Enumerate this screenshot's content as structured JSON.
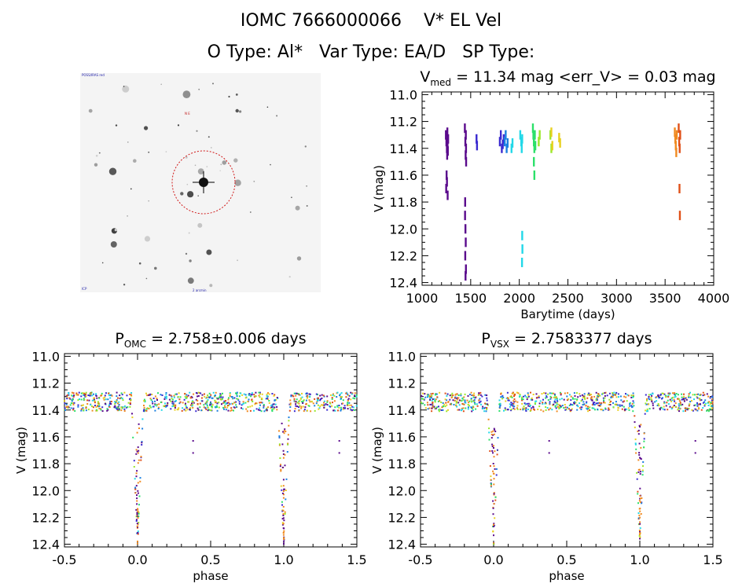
{
  "header": {
    "title": "IOMC 7666000066    V* EL Vel",
    "subtitle": "O Type: Al*   Var Type: EA/D   SP Type:"
  },
  "image_panel": {
    "corner_labels": [
      "POSS/IRAS red",
      "N   E",
      "ICP",
      "2 arcmin"
    ]
  },
  "chart_data": [
    {
      "type": "scatter",
      "title": "V_med = 11.34 mag <err_V> = 0.03 mag",
      "title_parts": {
        "v": "V",
        "sub": "med",
        "rest": " = 11.34 mag <err_V> = 0.03 mag"
      },
      "xlabel": "Barytime (days)",
      "ylabel": "V (mag)",
      "xlim": [
        1000,
        4000
      ],
      "ylim": [
        12.42,
        10.98
      ],
      "x_ticks": [
        1000,
        1500,
        2000,
        2500,
        3000,
        3500,
        4000
      ],
      "y_ticks": [
        "11.0",
        "11.2",
        "11.4",
        "11.6",
        "11.8",
        "12.0",
        "12.2",
        "12.4"
      ],
      "series": [
        {
          "color": "#5a0a8c",
          "x": [
            1245,
            1250,
            1255,
            1258,
            1260,
            1262,
            1265,
            1268,
            1252,
            1248,
            1256,
            1263,
            1440,
            1445,
            1448,
            1450,
            1452,
            1442,
            1446,
            1449,
            1444,
            1451,
            1447,
            1443,
            1453
          ],
          "y": [
            11.3,
            11.35,
            11.4,
            11.45,
            11.28,
            11.38,
            11.42,
            11.33,
            11.6,
            11.7,
            11.65,
            11.75,
            11.25,
            11.35,
            11.45,
            11.3,
            11.4,
            11.9,
            12.0,
            12.1,
            12.2,
            12.3,
            12.35,
            11.8,
            11.5
          ]
        },
        {
          "color": "#3a2ad0",
          "x": [
            1560,
            1565,
            1800,
            1810,
            1820,
            1830,
            1840
          ],
          "y": [
            11.33,
            11.38,
            11.35,
            11.3,
            11.4,
            11.37,
            11.33
          ]
        },
        {
          "color": "#1a7fe0",
          "x": [
            1850,
            1860,
            1870,
            1880
          ],
          "y": [
            11.35,
            11.3,
            11.4,
            11.36
          ]
        },
        {
          "color": "#22d8e8",
          "x": [
            1920,
            1930,
            2010,
            2020,
            2025,
            2030,
            2030,
            2032,
            2028
          ],
          "y": [
            11.4,
            11.36,
            11.3,
            11.35,
            11.4,
            11.33,
            12.05,
            12.15,
            12.25
          ]
        },
        {
          "color": "#2ce06a",
          "x": [
            2140,
            2145,
            2150,
            2155,
            2160,
            2165,
            2150,
            2155
          ],
          "y": [
            11.25,
            11.3,
            11.35,
            11.4,
            11.3,
            11.38,
            11.5,
            11.6
          ]
        },
        {
          "color": "#9ae82a",
          "x": [
            2200,
            2210,
            2320,
            2330
          ],
          "y": [
            11.35,
            11.3,
            11.3,
            11.4
          ]
        },
        {
          "color": "#e8d020",
          "x": [
            2330,
            2340,
            2410,
            2420
          ],
          "y": [
            11.28,
            11.38,
            11.32,
            11.36
          ]
        },
        {
          "color": "#f08a20",
          "x": [
            3600,
            3605,
            3610,
            3615,
            3620
          ],
          "y": [
            11.28,
            11.33,
            11.38,
            11.43,
            11.3
          ]
        },
        {
          "color": "#e05018",
          "x": [
            3640,
            3645,
            3650,
            3655,
            3648,
            3652
          ],
          "y": [
            11.25,
            11.35,
            11.4,
            11.3,
            11.7,
            11.9
          ]
        }
      ]
    },
    {
      "type": "scatter",
      "title": "P_OMC = 2.758±0.006 days",
      "title_parts": {
        "v": "P",
        "sub": "OMC",
        "rest": " = 2.758±0.006 days"
      },
      "xlabel": "phase",
      "ylabel": "V (mag)",
      "xlim": [
        -0.5,
        1.5
      ],
      "ylim": [
        12.42,
        10.98
      ],
      "x_ticks": [
        "-0.5",
        "0.0",
        "0.5",
        "1.0",
        "1.5"
      ],
      "y_ticks": [
        "11.0",
        "11.2",
        "11.4",
        "11.6",
        "11.8",
        "12.0",
        "12.2",
        "12.4"
      ],
      "eclipses": [
        {
          "phase": 0.0,
          "depth": 12.4
        },
        {
          "phase": 1.0,
          "depth": 12.4
        }
      ],
      "outliers": [
        [
          0.38,
          11.63
        ],
        [
          0.38,
          11.72
        ],
        [
          1.38,
          11.63
        ],
        [
          1.38,
          11.72
        ]
      ]
    },
    {
      "type": "scatter",
      "title": "P_VSX = 2.7583377 days",
      "title_parts": {
        "v": "P",
        "sub": "VSX",
        "rest": " = 2.7583377 days"
      },
      "xlabel": "phase",
      "ylabel": "V (mag)",
      "xlim": [
        -0.5,
        1.5
      ],
      "ylim": [
        12.42,
        10.98
      ],
      "x_ticks": [
        "-0.5",
        "0.0",
        "0.5",
        "1.0",
        "1.5"
      ],
      "y_ticks": [
        "11.0",
        "11.2",
        "11.4",
        "11.6",
        "11.8",
        "12.0",
        "12.2",
        "12.4"
      ],
      "eclipses": [
        {
          "phase": 0.0,
          "depth": 12.4
        },
        {
          "phase": 1.0,
          "depth": 12.4
        }
      ],
      "outliers": [
        [
          0.38,
          11.63
        ],
        [
          0.38,
          11.72
        ],
        [
          1.38,
          11.63
        ],
        [
          1.38,
          11.72
        ]
      ]
    }
  ],
  "palette": [
    "#5a0a8c",
    "#3a2ad0",
    "#1a7fe0",
    "#22d8e8",
    "#2ce06a",
    "#9ae82a",
    "#e8d020",
    "#f08a20",
    "#e05018"
  ]
}
